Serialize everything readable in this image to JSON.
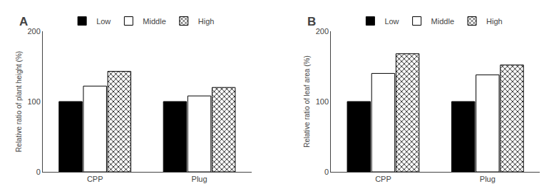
{
  "chart_data": [
    {
      "type": "bar",
      "title": "A",
      "ylabel": "Relative ratio of plant height (%)",
      "categories": [
        "CPP",
        "Plug"
      ],
      "series": [
        {
          "name": "Low",
          "color": "#000000",
          "values": [
            100,
            100
          ]
        },
        {
          "name": "Middle",
          "color": "#ffffff",
          "values": [
            122,
            108
          ]
        },
        {
          "name": "High",
          "color": "#ffffff",
          "marker": "x",
          "values": [
            143,
            120
          ]
        }
      ],
      "ylim": [
        0,
        200
      ],
      "yticks": [
        0,
        100,
        200
      ],
      "grid": false,
      "legend": "upper left"
    },
    {
      "type": "bar",
      "title": "B",
      "ylabel": "Relative ratio of leaf area (%)",
      "categories": [
        "CPP",
        "Plug"
      ],
      "series": [
        {
          "name": "Low",
          "color": "#000000",
          "values": [
            100,
            100
          ]
        },
        {
          "name": "Middle",
          "color": "#ffffff",
          "values": [
            140,
            138
          ]
        },
        {
          "name": "High",
          "color": "#ffffff",
          "marker": "x",
          "values": [
            168,
            152
          ]
        }
      ],
      "ylim": [
        0,
        200
      ],
      "yticks": [
        0,
        100,
        200
      ],
      "grid": false,
      "legend": "upper left"
    }
  ]
}
